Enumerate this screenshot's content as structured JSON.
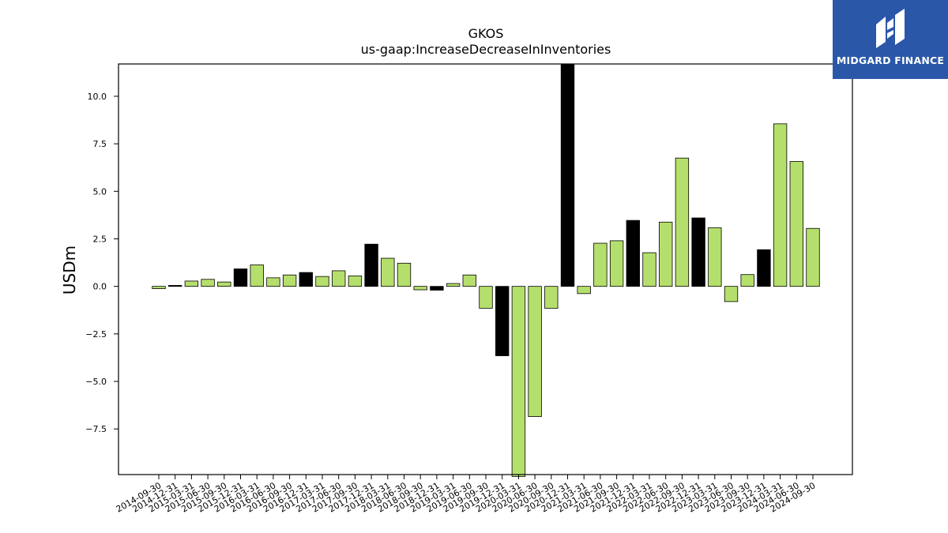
{
  "brand": {
    "name": "MIDGARD FINANCE",
    "logo_icon": "midgard-monogram-icon",
    "bg_color": "#2a57a8"
  },
  "colors": {
    "bar_fill": "#b5df6c",
    "bar_highlight": "#000000",
    "bar_edge": "#000000"
  },
  "chart_data": {
    "type": "bar",
    "title": "GKOS",
    "subtitle": "us-gaap:IncreaseDecreaseInInventories",
    "xlabel": "",
    "ylabel": "USDm",
    "ylim": [
      -9.9,
      11.7
    ],
    "yticks": [
      10.0,
      7.5,
      5.0,
      2.5,
      0.0,
      -2.5,
      -5.0,
      -7.5
    ],
    "ytick_labels": [
      "10.0",
      "7.5",
      "5.0",
      "2.5",
      "0.0",
      "−2.5",
      "−5.0",
      "−7.5"
    ],
    "grid": false,
    "categories": [
      "2014-09-30",
      "2014-12-31",
      "2015-03-31",
      "2015-06-30",
      "2015-09-30",
      "2015-12-31",
      "2016-03-31",
      "2016-06-30",
      "2016-09-30",
      "2016-12-31",
      "2017-03-31",
      "2017-06-30",
      "2017-09-30",
      "2017-12-31",
      "2018-03-31",
      "2018-06-30",
      "2018-09-30",
      "2018-12-31",
      "2019-03-31",
      "2019-06-30",
      "2019-09-30",
      "2019-12-31",
      "2020-03-31",
      "2020-06-30",
      "2020-09-30",
      "2020-12-31",
      "2021-03-31",
      "2021-06-30",
      "2021-09-30",
      "2021-12-31",
      "2022-03-31",
      "2022-06-30",
      "2022-09-30",
      "2022-12-31",
      "2023-03-31",
      "2023-06-30",
      "2023-09-30",
      "2023-12-31",
      "2024-03-31",
      "2024-06-30",
      "2024-09-30"
    ],
    "values": [
      -0.12,
      0.05,
      0.28,
      0.37,
      0.23,
      0.92,
      1.13,
      0.45,
      0.6,
      0.73,
      0.52,
      0.82,
      0.55,
      2.22,
      1.48,
      1.22,
      -0.18,
      -0.2,
      0.15,
      0.6,
      -1.15,
      -3.65,
      -10.0,
      -6.85,
      -1.15,
      11.7,
      -0.38,
      2.27,
      2.4,
      3.47,
      1.77,
      3.38,
      6.75,
      3.6,
      3.08,
      -0.8,
      0.62,
      1.93,
      8.55,
      6.57,
      3.05
    ],
    "highlight": [
      false,
      true,
      false,
      false,
      false,
      true,
      false,
      false,
      false,
      true,
      false,
      false,
      false,
      true,
      false,
      false,
      false,
      true,
      false,
      false,
      false,
      true,
      false,
      false,
      false,
      true,
      false,
      false,
      false,
      true,
      false,
      false,
      false,
      true,
      false,
      false,
      false,
      true,
      false,
      false,
      false
    ]
  }
}
